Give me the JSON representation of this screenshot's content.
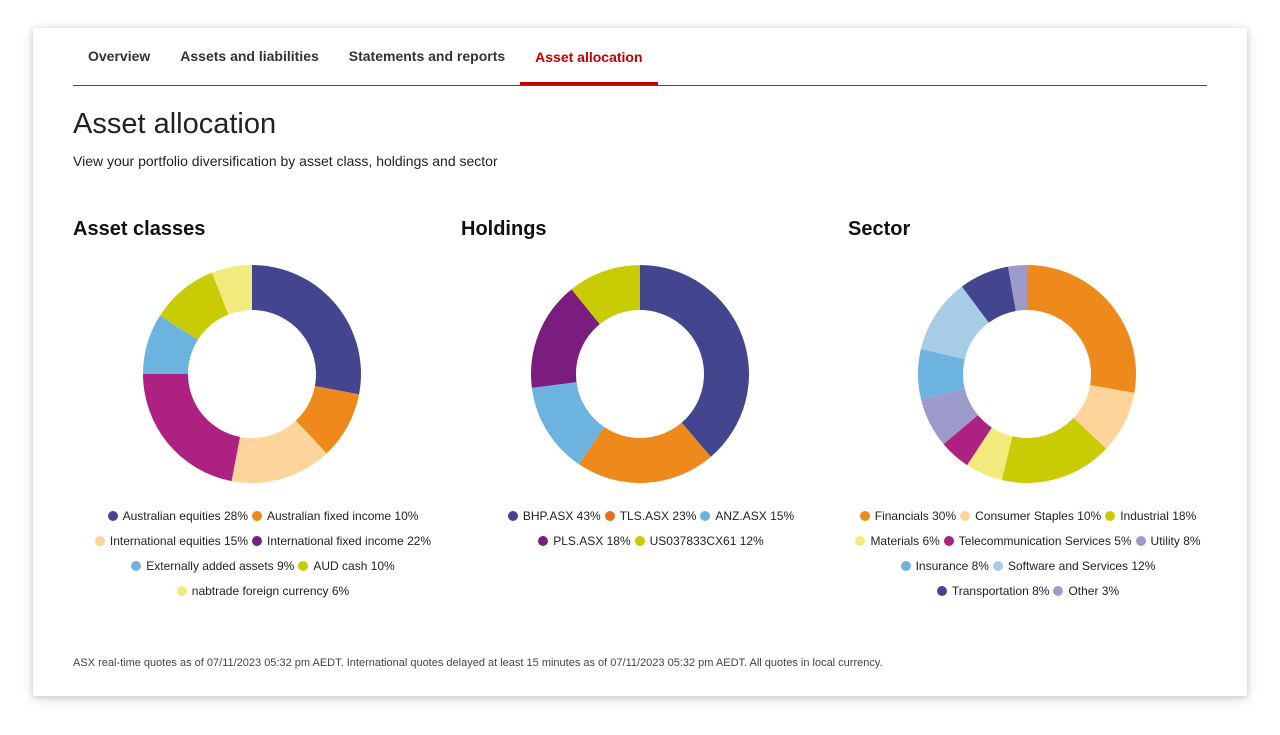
{
  "tabs": [
    {
      "label": "Overview",
      "active": false
    },
    {
      "label": "Assets and liabilities",
      "active": false
    },
    {
      "label": "Statements and reports",
      "active": false
    },
    {
      "label": "Asset allocation",
      "active": true
    }
  ],
  "page": {
    "title": "Asset allocation",
    "subtitle": "View your portfolio diversification by asset class, holdings and sector"
  },
  "colors": {
    "accent": "#c20000",
    "navy": "#43468f",
    "orange": "#ee8a1c",
    "peach": "#fdd49a",
    "purple": "#7a1d7f",
    "magenta": "#ac2181",
    "sky": "#6cb3e0",
    "lime": "#c9cb05",
    "yellow": "#f2ea7d",
    "pale_blue": "#a7cce5",
    "lavender": "#9d9bcb",
    "red_orange": "#ea6a1e"
  },
  "chart_data": [
    {
      "type": "pie",
      "title": "Asset classes",
      "series": [
        {
          "name": "Australian equities",
          "label": "Australian equities 28%",
          "value": 28,
          "color": "#43468f"
        },
        {
          "name": "Australian fixed income",
          "label": "Australian fixed income 10%",
          "value": 10,
          "color": "#ee8a1c"
        },
        {
          "name": "International equities",
          "label": "International equities 15%",
          "value": 15,
          "color": "#fdd49a"
        },
        {
          "name": "International fixed income",
          "label": "International fixed income 22%",
          "value": 22,
          "color": "#ac2181",
          "legend_color": "#7a1d7f"
        },
        {
          "name": "Externally added assets",
          "label": "Externally added assets 9%",
          "value": 9,
          "color": "#6cb3e0"
        },
        {
          "name": "AUD cash",
          "label": "AUD cash 10%",
          "value": 10,
          "color": "#c9cb05"
        },
        {
          "name": "nabtrade foreign currency",
          "label": "nabtrade foreign currency 6%",
          "value": 6,
          "color": "#f2ea7d"
        }
      ],
      "legend_rows": [
        [
          0,
          1
        ],
        [
          2,
          3
        ],
        [
          4,
          5
        ],
        [
          6
        ]
      ]
    },
    {
      "type": "pie",
      "title": "Holdings",
      "series": [
        {
          "name": "BHP.ASX",
          "label": "BHP.ASX 43%",
          "value": 43,
          "color": "#43468f"
        },
        {
          "name": "TLS.ASX",
          "label": "TLS.ASX 23%",
          "value": 23,
          "color": "#ee8a1c",
          "legend_color": "#ea6a1e"
        },
        {
          "name": "ANZ.ASX",
          "label": "ANZ.ASX 15%",
          "value": 15,
          "color": "#6cb3e0"
        },
        {
          "name": "PLS.ASX",
          "label": "PLS.ASX 18%",
          "value": 18,
          "color": "#7a1d7f"
        },
        {
          "name": "US037833CX61",
          "label": "US037833CX61 12%",
          "value": 12,
          "color": "#c9cb05"
        }
      ],
      "legend_rows": [
        [
          0,
          1,
          2
        ],
        [
          3,
          4
        ]
      ]
    },
    {
      "type": "pie",
      "title": "Sector",
      "series": [
        {
          "name": "Financials",
          "label": "Financials 30%",
          "value": 30,
          "color": "#ee8a1c"
        },
        {
          "name": "Consumer Staples",
          "label": "Consumer Staples 10%",
          "value": 10,
          "color": "#fdd49a"
        },
        {
          "name": "Industrial",
          "label": "Industrial 18%",
          "value": 18,
          "color": "#c9cb05"
        },
        {
          "name": "Materials",
          "label": "Materials 6%",
          "value": 6,
          "color": "#f2ea7d"
        },
        {
          "name": "Telecommunication Services",
          "label": "Telecommunication Services 5%",
          "value": 5,
          "color": "#ac2181"
        },
        {
          "name": "Utility",
          "label": "Utility 8%",
          "value": 8,
          "color": "#9d9bcb"
        },
        {
          "name": "Insurance",
          "label": "Insurance 8%",
          "value": 8,
          "color": "#6cb3e0"
        },
        {
          "name": "Software and Services",
          "label": "Software and Services 12%",
          "value": 12,
          "color": "#a7cce5"
        },
        {
          "name": "Transportation",
          "label": "Transportation 8%",
          "value": 8,
          "color": "#43468f"
        },
        {
          "name": "Other",
          "label": "Other 3%",
          "value": 3,
          "color": "#9d9bcb"
        }
      ],
      "legend_rows": [
        [
          0,
          1,
          2
        ],
        [
          3,
          4,
          5
        ],
        [
          6,
          7
        ],
        [
          8,
          9
        ]
      ]
    }
  ],
  "footnote": "ASX real-time quotes as of 07/11/2023 05:32 pm AEDT. International quotes delayed at least 15 minutes as of 07/11/2023 05:32 pm AEDT. All quotes in local currency."
}
